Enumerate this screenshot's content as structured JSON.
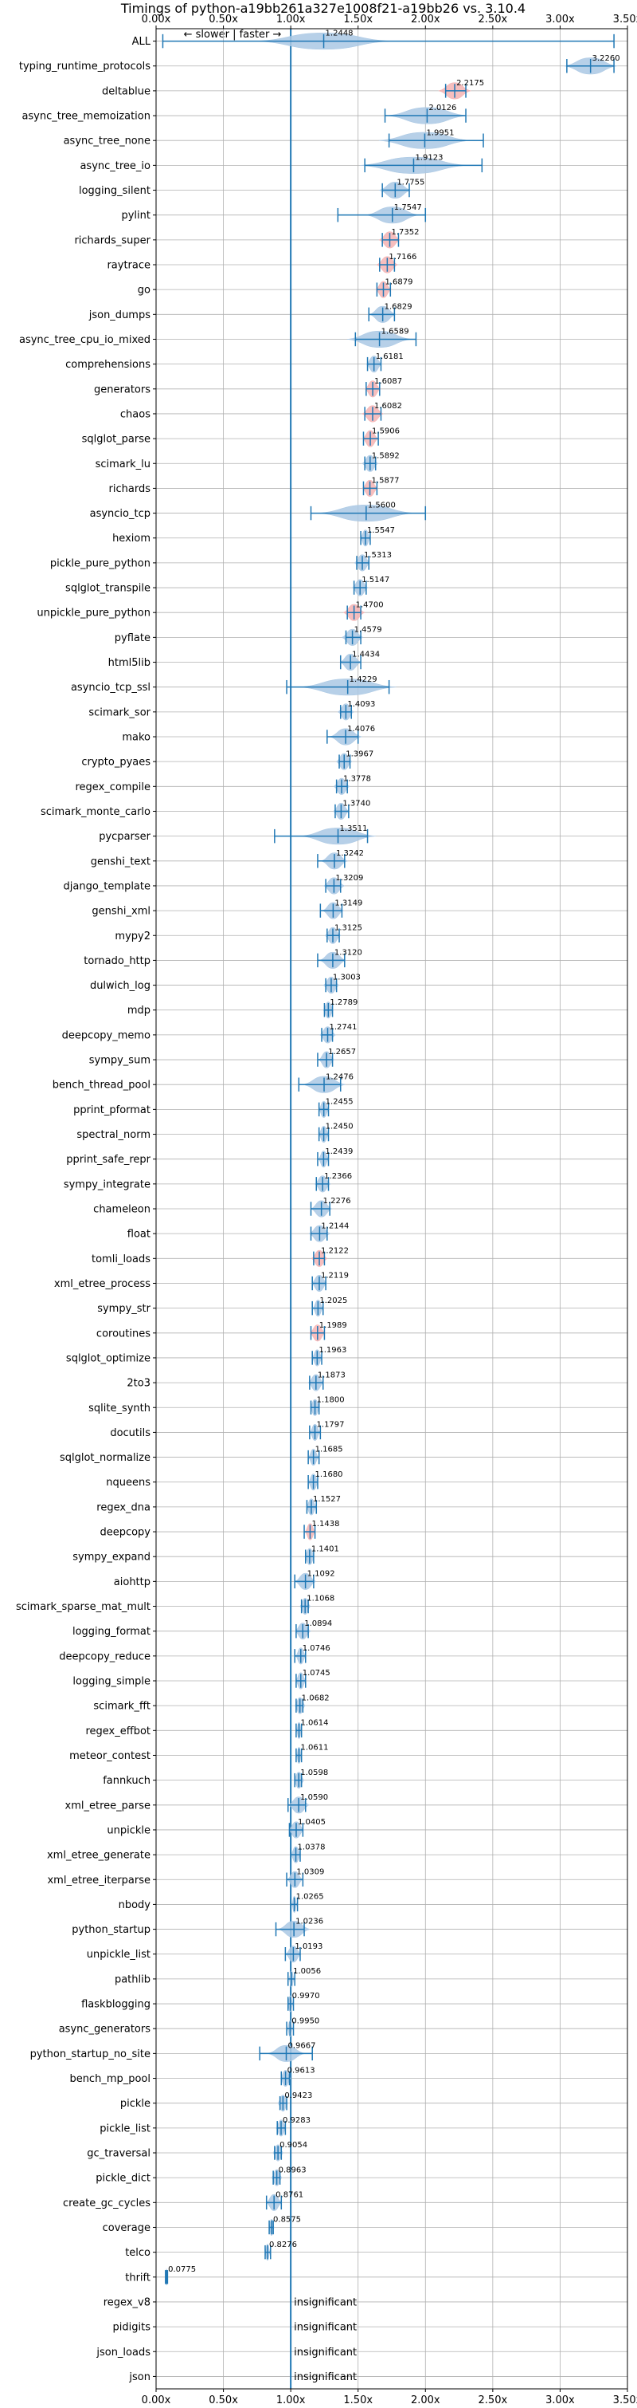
{
  "chart_data": {
    "type": "violin",
    "title": "Timings of python-a19bb261a327e1008f21-a19bb26 vs. 3.10.4",
    "annotation": "← slower | faster →",
    "xlim": [
      0.0,
      3.5
    ],
    "x_ticks": [
      "0.00x",
      "0.50x",
      "1.00x",
      "1.50x",
      "2.00x",
      "2.50x",
      "3.00x",
      "3.50x"
    ],
    "grid": true,
    "reference_line": 1.0,
    "insignificant_label": "insignificant",
    "colors": {
      "line": "#1f77b4",
      "violin": "#aac8e4",
      "violin_red": "#f4b3b3"
    },
    "benchmarks": [
      {
        "name": "ALL",
        "value": 1.2448,
        "label": "1.2448",
        "min": 0.05,
        "max": 3.4,
        "spread": 0.25
      },
      {
        "name": "typing_runtime_protocols",
        "value": 3.226,
        "label": "3.2260",
        "min": 3.05,
        "max": 3.4,
        "spread": 0.1
      },
      {
        "name": "deltablue",
        "value": 2.2175,
        "label": "2.2175",
        "min": 2.15,
        "max": 2.3,
        "spread": 0.06,
        "red": true
      },
      {
        "name": "async_tree_memoization",
        "value": 2.0126,
        "label": "2.0126",
        "min": 1.7,
        "max": 2.3,
        "spread": 0.15
      },
      {
        "name": "async_tree_none",
        "value": 1.9951,
        "label": "1.9951",
        "min": 1.73,
        "max": 2.43,
        "spread": 0.17
      },
      {
        "name": "async_tree_io",
        "value": 1.9123,
        "label": "1.9123",
        "min": 1.55,
        "max": 2.42,
        "spread": 0.2
      },
      {
        "name": "logging_silent",
        "value": 1.7755,
        "label": "1.7755",
        "min": 1.68,
        "max": 1.88,
        "spread": 0.06
      },
      {
        "name": "pylint",
        "value": 1.7547,
        "label": "1.7547",
        "min": 1.35,
        "max": 2.0,
        "spread": 0.1
      },
      {
        "name": "richards_super",
        "value": 1.7352,
        "label": "1.7352",
        "min": 1.68,
        "max": 1.8,
        "spread": 0.04,
        "red": true
      },
      {
        "name": "raytrace",
        "value": 1.7166,
        "label": "1.7166",
        "min": 1.66,
        "max": 1.77,
        "spread": 0.04,
        "red": true
      },
      {
        "name": "go",
        "value": 1.6879,
        "label": "1.6879",
        "min": 1.64,
        "max": 1.74,
        "spread": 0.03,
        "red": true
      },
      {
        "name": "json_dumps",
        "value": 1.6829,
        "label": "1.6829",
        "min": 1.58,
        "max": 1.77,
        "spread": 0.05
      },
      {
        "name": "async_tree_cpu_io_mixed",
        "value": 1.6589,
        "label": "1.6589",
        "min": 1.48,
        "max": 1.93,
        "spread": 0.12
      },
      {
        "name": "comprehensions",
        "value": 1.6181,
        "label": "1.6181",
        "min": 1.57,
        "max": 1.67,
        "spread": 0.03
      },
      {
        "name": "generators",
        "value": 1.6087,
        "label": "1.6087",
        "min": 1.56,
        "max": 1.66,
        "spread": 0.03,
        "red": true
      },
      {
        "name": "chaos",
        "value": 1.6082,
        "label": "1.6082",
        "min": 1.55,
        "max": 1.67,
        "spread": 0.04,
        "red": true
      },
      {
        "name": "sqlglot_parse",
        "value": 1.5906,
        "label": "1.5906",
        "min": 1.54,
        "max": 1.65,
        "spread": 0.03,
        "red": true
      },
      {
        "name": "scimark_lu",
        "value": 1.5892,
        "label": "1.5892",
        "min": 1.55,
        "max": 1.63,
        "spread": 0.03
      },
      {
        "name": "richards",
        "value": 1.5877,
        "label": "1.5877",
        "min": 1.54,
        "max": 1.64,
        "spread": 0.03,
        "red": true
      },
      {
        "name": "asyncio_tcp",
        "value": 1.56,
        "label": "1.5600",
        "min": 1.15,
        "max": 2.0,
        "spread": 0.18
      },
      {
        "name": "hexiom",
        "value": 1.5547,
        "label": "1.5547",
        "min": 1.52,
        "max": 1.59,
        "spread": 0.02
      },
      {
        "name": "pickle_pure_python",
        "value": 1.5313,
        "label": "1.5313",
        "min": 1.49,
        "max": 1.58,
        "spread": 0.03
      },
      {
        "name": "sqlglot_transpile",
        "value": 1.5147,
        "label": "1.5147",
        "min": 1.47,
        "max": 1.56,
        "spread": 0.03
      },
      {
        "name": "unpickle_pure_python",
        "value": 1.47,
        "label": "1.4700",
        "min": 1.42,
        "max": 1.52,
        "spread": 0.04,
        "red": true
      },
      {
        "name": "pyflate",
        "value": 1.4579,
        "label": "1.4579",
        "min": 1.41,
        "max": 1.52,
        "spread": 0.04
      },
      {
        "name": "html5lib",
        "value": 1.4434,
        "label": "1.4434",
        "min": 1.37,
        "max": 1.52,
        "spread": 0.04
      },
      {
        "name": "asyncio_tcp_ssl",
        "value": 1.4229,
        "label": "1.4229",
        "min": 0.97,
        "max": 1.73,
        "spread": 0.18
      },
      {
        "name": "scimark_sor",
        "value": 1.4093,
        "label": "1.4093",
        "min": 1.37,
        "max": 1.45,
        "spread": 0.03
      },
      {
        "name": "mako",
        "value": 1.4076,
        "label": "1.4076",
        "min": 1.27,
        "max": 1.5,
        "spread": 0.06
      },
      {
        "name": "crypto_pyaes",
        "value": 1.3967,
        "label": "1.3967",
        "min": 1.36,
        "max": 1.44,
        "spread": 0.03
      },
      {
        "name": "regex_compile",
        "value": 1.3778,
        "label": "1.3778",
        "min": 1.34,
        "max": 1.42,
        "spread": 0.03
      },
      {
        "name": "scimark_monte_carlo",
        "value": 1.374,
        "label": "1.3740",
        "min": 1.33,
        "max": 1.43,
        "spread": 0.03
      },
      {
        "name": "pycparser",
        "value": 1.3511,
        "label": "1.3511",
        "min": 0.88,
        "max": 1.57,
        "spread": 0.14
      },
      {
        "name": "genshi_text",
        "value": 1.3242,
        "label": "1.3242",
        "min": 1.2,
        "max": 1.4,
        "spread": 0.05
      },
      {
        "name": "django_template",
        "value": 1.3209,
        "label": "1.3209",
        "min": 1.26,
        "max": 1.37,
        "spread": 0.04
      },
      {
        "name": "genshi_xml",
        "value": 1.3149,
        "label": "1.3149",
        "min": 1.22,
        "max": 1.38,
        "spread": 0.04
      },
      {
        "name": "mypy2",
        "value": 1.3125,
        "label": "1.3125",
        "min": 1.27,
        "max": 1.36,
        "spread": 0.03
      },
      {
        "name": "tornado_http",
        "value": 1.312,
        "label": "1.3120",
        "min": 1.2,
        "max": 1.4,
        "spread": 0.05
      },
      {
        "name": "dulwich_log",
        "value": 1.3003,
        "label": "1.3003",
        "min": 1.26,
        "max": 1.34,
        "spread": 0.03
      },
      {
        "name": "mdp",
        "value": 1.2789,
        "label": "1.2789",
        "min": 1.25,
        "max": 1.31,
        "spread": 0.02
      },
      {
        "name": "deepcopy_memo",
        "value": 1.2741,
        "label": "1.2741",
        "min": 1.23,
        "max": 1.31,
        "spread": 0.03
      },
      {
        "name": "sympy_sum",
        "value": 1.2657,
        "label": "1.2657",
        "min": 1.2,
        "max": 1.31,
        "spread": 0.03
      },
      {
        "name": "bench_thread_pool",
        "value": 1.2476,
        "label": "1.2476",
        "min": 1.06,
        "max": 1.37,
        "spread": 0.08
      },
      {
        "name": "pprint_pformat",
        "value": 1.2455,
        "label": "1.2455",
        "min": 1.21,
        "max": 1.28,
        "spread": 0.02
      },
      {
        "name": "spectral_norm",
        "value": 1.245,
        "label": "1.2450",
        "min": 1.21,
        "max": 1.28,
        "spread": 0.02
      },
      {
        "name": "pprint_safe_repr",
        "value": 1.2439,
        "label": "1.2439",
        "min": 1.2,
        "max": 1.28,
        "spread": 0.02
      },
      {
        "name": "sympy_integrate",
        "value": 1.2366,
        "label": "1.2366",
        "min": 1.19,
        "max": 1.28,
        "spread": 0.03
      },
      {
        "name": "chameleon",
        "value": 1.2276,
        "label": "1.2276",
        "min": 1.15,
        "max": 1.29,
        "spread": 0.04
      },
      {
        "name": "float",
        "value": 1.2144,
        "label": "1.2144",
        "min": 1.15,
        "max": 1.27,
        "spread": 0.04
      },
      {
        "name": "tomli_loads",
        "value": 1.2122,
        "label": "1.2122",
        "min": 1.17,
        "max": 1.25,
        "spread": 0.03,
        "red": true
      },
      {
        "name": "xml_etree_process",
        "value": 1.2119,
        "label": "1.2119",
        "min": 1.16,
        "max": 1.26,
        "spread": 0.03
      },
      {
        "name": "sympy_str",
        "value": 1.2025,
        "label": "1.2025",
        "min": 1.16,
        "max": 1.24,
        "spread": 0.02
      },
      {
        "name": "coroutines",
        "value": 1.1989,
        "label": "1.1989",
        "min": 1.15,
        "max": 1.25,
        "spread": 0.03,
        "red": true
      },
      {
        "name": "sqlglot_optimize",
        "value": 1.1963,
        "label": "1.1963",
        "min": 1.16,
        "max": 1.23,
        "spread": 0.02
      },
      {
        "name": "2to3",
        "value": 1.1873,
        "label": "1.1873",
        "min": 1.14,
        "max": 1.24,
        "spread": 0.03
      },
      {
        "name": "sqlite_synth",
        "value": 1.18,
        "label": "1.1800",
        "min": 1.15,
        "max": 1.21,
        "spread": 0.02
      },
      {
        "name": "docutils",
        "value": 1.1797,
        "label": "1.1797",
        "min": 1.14,
        "max": 1.22,
        "spread": 0.02
      },
      {
        "name": "sqlglot_normalize",
        "value": 1.1685,
        "label": "1.1685",
        "min": 1.13,
        "max": 1.21,
        "spread": 0.02
      },
      {
        "name": "nqueens",
        "value": 1.168,
        "label": "1.1680",
        "min": 1.13,
        "max": 1.2,
        "spread": 0.02
      },
      {
        "name": "regex_dna",
        "value": 1.1527,
        "label": "1.1527",
        "min": 1.12,
        "max": 1.19,
        "spread": 0.02
      },
      {
        "name": "deepcopy",
        "value": 1.1438,
        "label": "1.1438",
        "min": 1.1,
        "max": 1.18,
        "spread": 0.02,
        "red": true
      },
      {
        "name": "sympy_expand",
        "value": 1.1401,
        "label": "1.1401",
        "min": 1.11,
        "max": 1.17,
        "spread": 0.02
      },
      {
        "name": "aiohttp",
        "value": 1.1092,
        "label": "1.1092",
        "min": 1.03,
        "max": 1.17,
        "spread": 0.04
      },
      {
        "name": "scimark_sparse_mat_mult",
        "value": 1.1068,
        "label": "1.1068",
        "min": 1.08,
        "max": 1.13,
        "spread": 0.02
      },
      {
        "name": "logging_format",
        "value": 1.0894,
        "label": "1.0894",
        "min": 1.04,
        "max": 1.13,
        "spread": 0.03
      },
      {
        "name": "deepcopy_reduce",
        "value": 1.0746,
        "label": "1.0746",
        "min": 1.03,
        "max": 1.11,
        "spread": 0.02
      },
      {
        "name": "logging_simple",
        "value": 1.0745,
        "label": "1.0745",
        "min": 1.04,
        "max": 1.11,
        "spread": 0.02
      },
      {
        "name": "scimark_fft",
        "value": 1.0682,
        "label": "1.0682",
        "min": 1.04,
        "max": 1.09,
        "spread": 0.02
      },
      {
        "name": "regex_effbot",
        "value": 1.0614,
        "label": "1.0614",
        "min": 1.04,
        "max": 1.08,
        "spread": 0.01
      },
      {
        "name": "meteor_contest",
        "value": 1.0611,
        "label": "1.0611",
        "min": 1.04,
        "max": 1.08,
        "spread": 0.01
      },
      {
        "name": "fannkuch",
        "value": 1.0598,
        "label": "1.0598",
        "min": 1.03,
        "max": 1.08,
        "spread": 0.02
      },
      {
        "name": "xml_etree_parse",
        "value": 1.059,
        "label": "1.0590",
        "min": 0.98,
        "max": 1.11,
        "spread": 0.04
      },
      {
        "name": "unpickle",
        "value": 1.0405,
        "label": "1.0405",
        "min": 0.99,
        "max": 1.09,
        "spread": 0.03
      },
      {
        "name": "xml_etree_generate",
        "value": 1.0378,
        "label": "1.0378",
        "min": 1.0,
        "max": 1.07,
        "spread": 0.02
      },
      {
        "name": "xml_etree_iterparse",
        "value": 1.0309,
        "label": "1.0309",
        "min": 0.97,
        "max": 1.09,
        "spread": 0.03
      },
      {
        "name": "nbody",
        "value": 1.0265,
        "label": "1.0265",
        "min": 1.0,
        "max": 1.05,
        "spread": 0.01
      },
      {
        "name": "python_startup",
        "value": 1.0236,
        "label": "1.0236",
        "min": 0.89,
        "max": 1.1,
        "spread": 0.06
      },
      {
        "name": "unpickle_list",
        "value": 1.0193,
        "label": "1.0193",
        "min": 0.96,
        "max": 1.07,
        "spread": 0.03
      },
      {
        "name": "pathlib",
        "value": 1.0056,
        "label": "1.0056",
        "min": 0.98,
        "max": 1.03,
        "spread": 0.01
      },
      {
        "name": "flaskblogging",
        "value": 0.997,
        "label": "0.9970",
        "min": 0.98,
        "max": 1.02,
        "spread": 0.01
      },
      {
        "name": "async_generators",
        "value": 0.995,
        "label": "0.9950",
        "min": 0.97,
        "max": 1.02,
        "spread": 0.01
      },
      {
        "name": "python_startup_no_site",
        "value": 0.9667,
        "label": "0.9667",
        "min": 0.77,
        "max": 1.16,
        "spread": 0.07
      },
      {
        "name": "bench_mp_pool",
        "value": 0.9613,
        "label": "0.9613",
        "min": 0.93,
        "max": 0.99,
        "spread": 0.02
      },
      {
        "name": "pickle",
        "value": 0.9423,
        "label": "0.9423",
        "min": 0.92,
        "max": 0.97,
        "spread": 0.02
      },
      {
        "name": "pickle_list",
        "value": 0.9283,
        "label": "0.9283",
        "min": 0.9,
        "max": 0.96,
        "spread": 0.02
      },
      {
        "name": "gc_traversal",
        "value": 0.9054,
        "label": "0.9054",
        "min": 0.88,
        "max": 0.93,
        "spread": 0.02
      },
      {
        "name": "pickle_dict",
        "value": 0.8963,
        "label": "0.8963",
        "min": 0.87,
        "max": 0.92,
        "spread": 0.02
      },
      {
        "name": "create_gc_cycles",
        "value": 0.8761,
        "label": "0.8761",
        "min": 0.82,
        "max": 0.93,
        "spread": 0.03
      },
      {
        "name": "coverage",
        "value": 0.8575,
        "label": "0.8575",
        "min": 0.84,
        "max": 0.87,
        "spread": 0.01
      },
      {
        "name": "telco",
        "value": 0.8276,
        "label": "0.8276",
        "min": 0.81,
        "max": 0.85,
        "spread": 0.01
      },
      {
        "name": "thrift",
        "value": 0.0775,
        "label": "0.0775",
        "min": 0.07,
        "max": 0.085,
        "spread": 0.005
      },
      {
        "name": "regex_v8",
        "insignificant": true
      },
      {
        "name": "pidigits",
        "insignificant": true
      },
      {
        "name": "json_loads",
        "insignificant": true
      },
      {
        "name": "json",
        "insignificant": true
      }
    ]
  }
}
